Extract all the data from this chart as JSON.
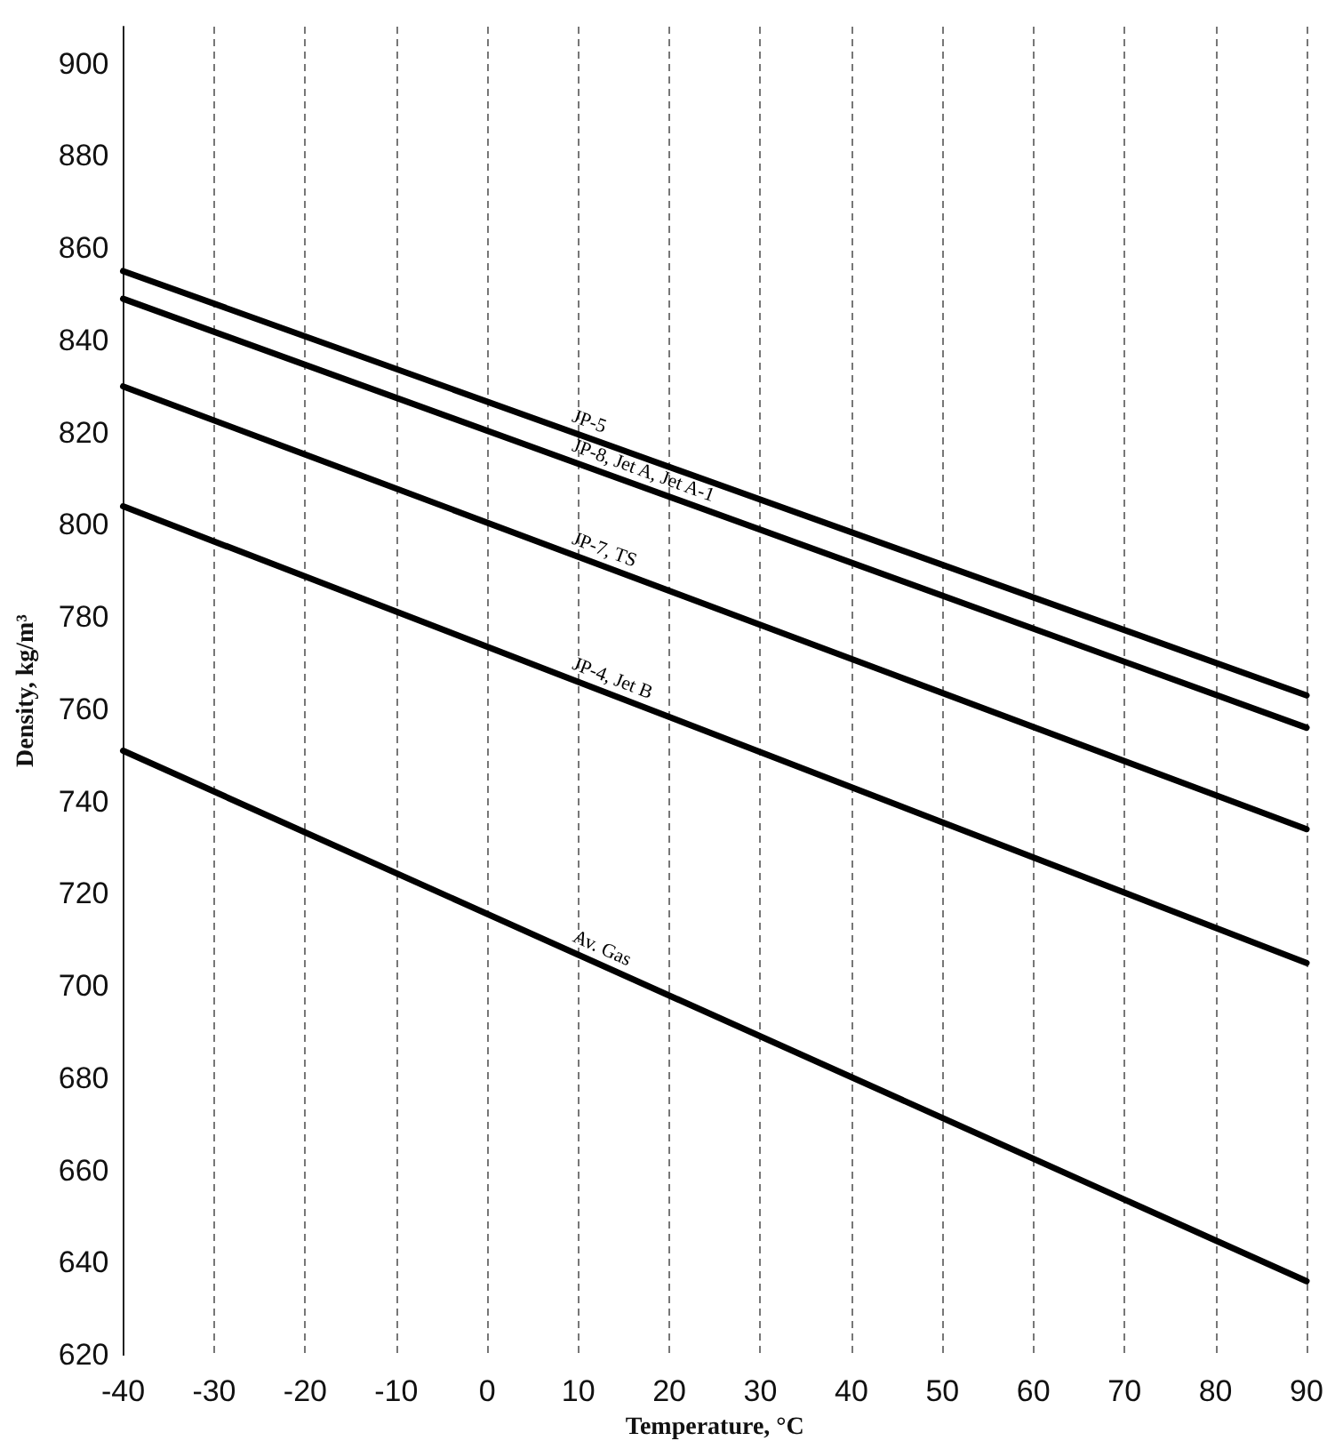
{
  "chart_data": {
    "type": "line",
    "xlabel": "Temperature, °C",
    "ylabel": "Density, kg/m³",
    "x": [
      -40,
      90
    ],
    "series": [
      {
        "name": "JP-5",
        "color": "#000000",
        "values": [
          855,
          763
        ]
      },
      {
        "name": "JP-8, Jet A, Jet A-1",
        "color": "#000000",
        "values": [
          849,
          756
        ]
      },
      {
        "name": "JP-7, TS",
        "color": "#000000",
        "values": [
          830,
          734
        ]
      },
      {
        "name": "JP-4, Jet B",
        "color": "#000000",
        "values": [
          804,
          705
        ]
      },
      {
        "name": "Av. Gas",
        "color": "#000000",
        "values": [
          751,
          636
        ]
      }
    ],
    "xlim": [
      -40,
      90
    ],
    "xticks": [
      -40,
      -30,
      -20,
      -10,
      0,
      10,
      20,
      30,
      40,
      50,
      60,
      70,
      80,
      90
    ],
    "ylim": [
      620,
      908
    ],
    "yticks": [
      620,
      640,
      660,
      680,
      700,
      720,
      740,
      760,
      780,
      800,
      820,
      840,
      860,
      880,
      900
    ],
    "grid": "x",
    "marker": "none",
    "line_style": "solid"
  }
}
